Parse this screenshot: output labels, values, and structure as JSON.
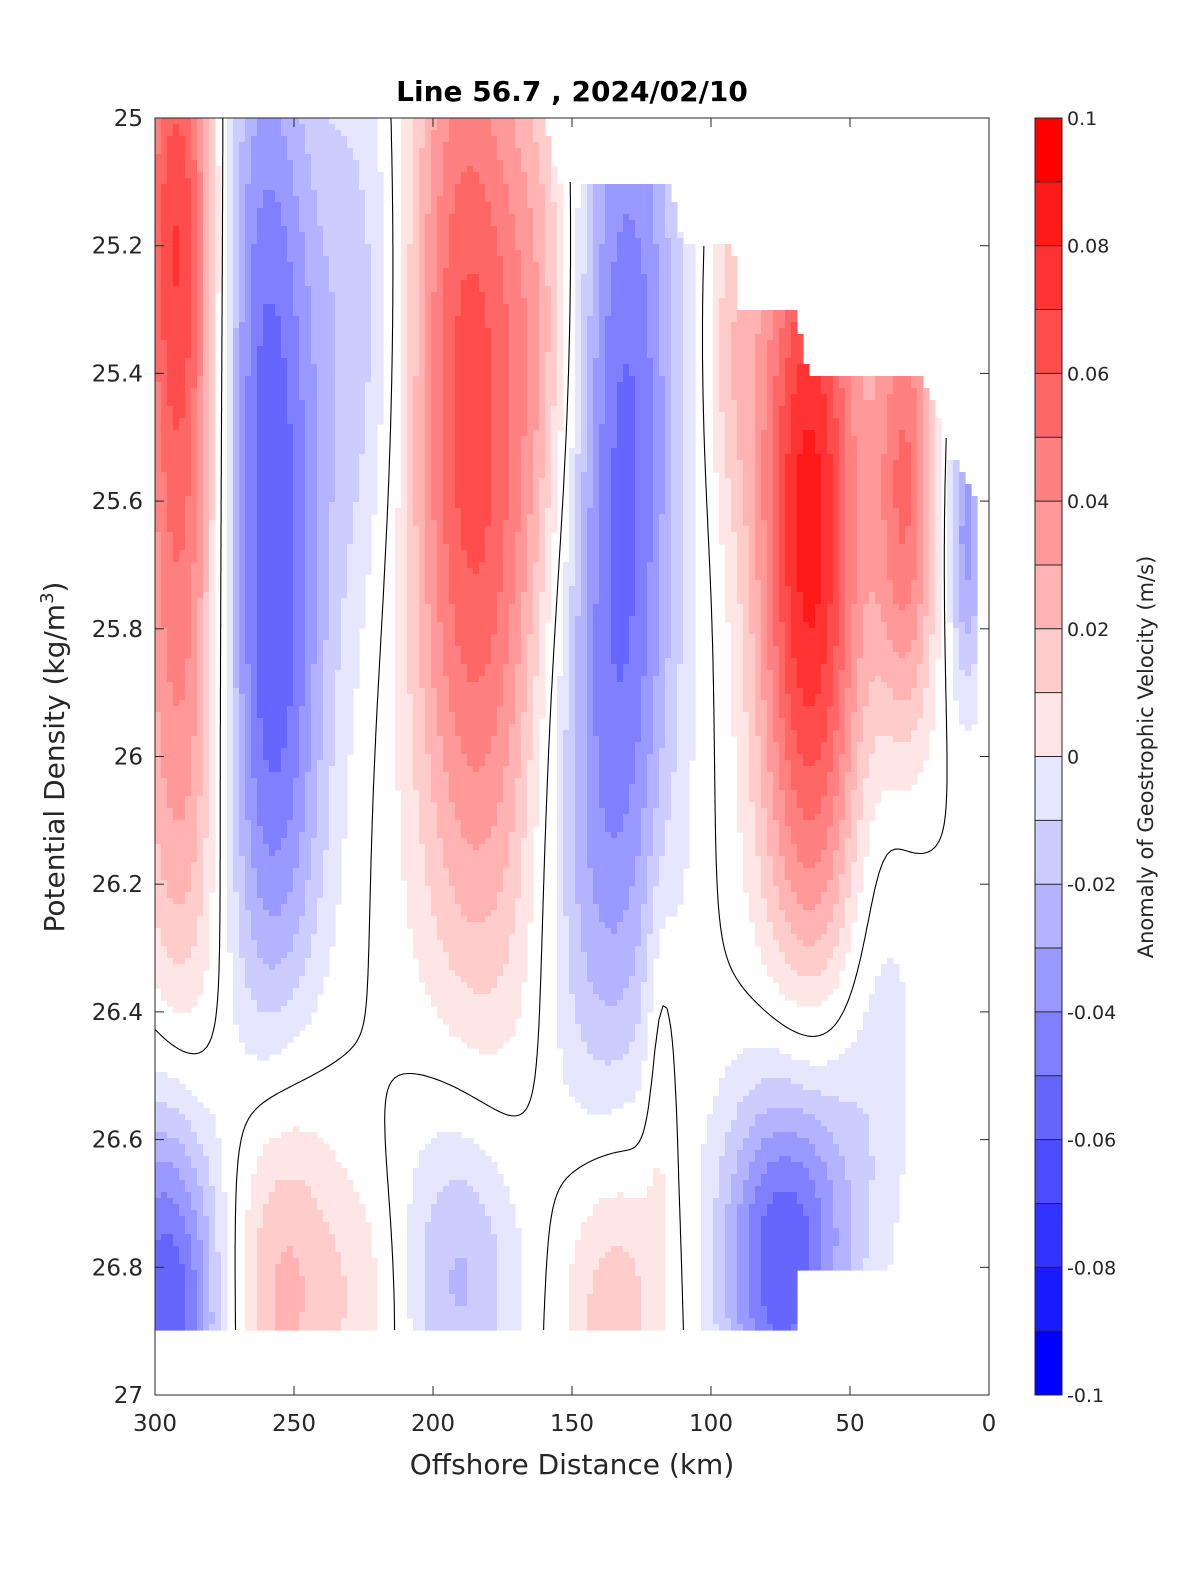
{
  "chart_data": {
    "type": "heatmap",
    "subtype": "filled-contour",
    "title": "Line 56.7 , 2024/02/10",
    "xlabel": "Offshore Distance (km)",
    "ylabel_main": "Potential Density (kg/m",
    "ylabel_sup": "3",
    "ylabel_close": ")",
    "colorbar_label": "Anomaly of Geostrophic Velocity (m/s)",
    "xlim": [
      300,
      0
    ],
    "x_reversed": true,
    "ylim": [
      25,
      27
    ],
    "y_reversed": true,
    "x_ticks": [
      300,
      250,
      200,
      150,
      100,
      50,
      0
    ],
    "y_ticks": [
      25,
      25.2,
      25.4,
      25.6,
      25.8,
      26,
      26.2,
      26.4,
      26.6,
      26.8,
      27
    ],
    "y_tick_labels": [
      "25",
      "25.2",
      "25.4",
      "25.6",
      "25.8",
      "26",
      "26.2",
      "26.4",
      "26.6",
      "26.8",
      "27"
    ],
    "colorbar_range": [
      -0.1,
      0.1
    ],
    "colorbar_ticks": [
      0.1,
      0.08,
      0.06,
      0.04,
      0.02,
      0,
      -0.02,
      -0.04,
      -0.06,
      -0.08,
      -0.1
    ],
    "colorbar_tick_labels": [
      "0.1",
      "0.08",
      "0.06",
      "0.04",
      "0.02",
      "0",
      "-0.02",
      "-0.04",
      "-0.06",
      "-0.08",
      "-0.1"
    ],
    "contour_interval": 0.01,
    "zero_contour_color": "#000000",
    "max_color": "#ff0000",
    "min_color": "#0000ff",
    "data_top": [
      {
        "x": 300,
        "density": 25.0
      },
      {
        "x": 160,
        "density": 25.0
      },
      {
        "x": 155,
        "density": 25.1
      },
      {
        "x": 115,
        "density": 25.1
      },
      {
        "x": 110,
        "density": 25.2
      },
      {
        "x": 92,
        "density": 25.2
      },
      {
        "x": 90,
        "density": 25.3
      },
      {
        "x": 70,
        "density": 25.3
      },
      {
        "x": 65,
        "density": 25.4
      },
      {
        "x": 25,
        "density": 25.4
      },
      {
        "x": 15,
        "density": 25.5
      },
      {
        "x": 5,
        "density": 25.6
      }
    ],
    "data_bottom_density": 26.9,
    "bottom_gap_region": {
      "x_range": [
        70,
        35
      ],
      "top_density": 26.8
    },
    "features": [
      {
        "x": 290,
        "density": 25.7,
        "sx": 12,
        "sy": 0.55,
        "value": 0.058
      },
      {
        "x": 292,
        "density": 25.1,
        "sx": 10,
        "sy": 0.3,
        "value": 0.05
      },
      {
        "x": 258,
        "density": 25.85,
        "sx": 14,
        "sy": 0.45,
        "value": -0.065
      },
      {
        "x": 262,
        "density": 25.15,
        "sx": 14,
        "sy": 0.35,
        "value": -0.035
      },
      {
        "x": 225,
        "density": 25.3,
        "sx": 12,
        "sy": 0.35,
        "value": -0.025
      },
      {
        "x": 188,
        "density": 25.3,
        "sx": 16,
        "sy": 0.5,
        "value": 0.06
      },
      {
        "x": 180,
        "density": 25.9,
        "sx": 18,
        "sy": 0.45,
        "value": 0.032
      },
      {
        "x": 160,
        "density": 25.3,
        "sx": 10,
        "sy": 0.3,
        "value": 0.022
      },
      {
        "x": 130,
        "density": 25.4,
        "sx": 14,
        "sy": 0.5,
        "value": -0.055
      },
      {
        "x": 140,
        "density": 26.1,
        "sx": 16,
        "sy": 0.4,
        "value": -0.035
      },
      {
        "x": 93,
        "density": 25.35,
        "sx": 7,
        "sy": 0.2,
        "value": 0.02
      },
      {
        "x": 65,
        "density": 25.55,
        "sx": 14,
        "sy": 0.4,
        "value": 0.085
      },
      {
        "x": 62,
        "density": 26.1,
        "sx": 14,
        "sy": 0.35,
        "value": 0.03
      },
      {
        "x": 30,
        "density": 25.5,
        "sx": 8,
        "sy": 0.25,
        "value": 0.05
      },
      {
        "x": 30,
        "density": 25.8,
        "sx": 8,
        "sy": 0.2,
        "value": 0.02
      },
      {
        "x": 8,
        "density": 25.65,
        "sx": 5,
        "sy": 0.18,
        "value": -0.045
      },
      {
        "x": 40,
        "density": 26.3,
        "sx": 12,
        "sy": 0.3,
        "value": -0.015
      },
      {
        "x": 295,
        "density": 26.85,
        "sx": 14,
        "sy": 0.25,
        "value": -0.075
      },
      {
        "x": 255,
        "density": 26.8,
        "sx": 14,
        "sy": 0.25,
        "value": 0.038
      },
      {
        "x": 225,
        "density": 26.85,
        "sx": 12,
        "sy": 0.15,
        "value": 0.015
      },
      {
        "x": 190,
        "density": 26.8,
        "sx": 16,
        "sy": 0.2,
        "value": -0.035
      },
      {
        "x": 135,
        "density": 26.85,
        "sx": 14,
        "sy": 0.2,
        "value": 0.032
      },
      {
        "x": 118,
        "density": 26.45,
        "sx": 4,
        "sy": 0.2,
        "value": 0.015
      },
      {
        "x": 75,
        "density": 26.8,
        "sx": 16,
        "sy": 0.2,
        "value": -0.065
      },
      {
        "x": 60,
        "density": 26.6,
        "sx": 16,
        "sy": 0.2,
        "value": -0.02
      }
    ]
  }
}
